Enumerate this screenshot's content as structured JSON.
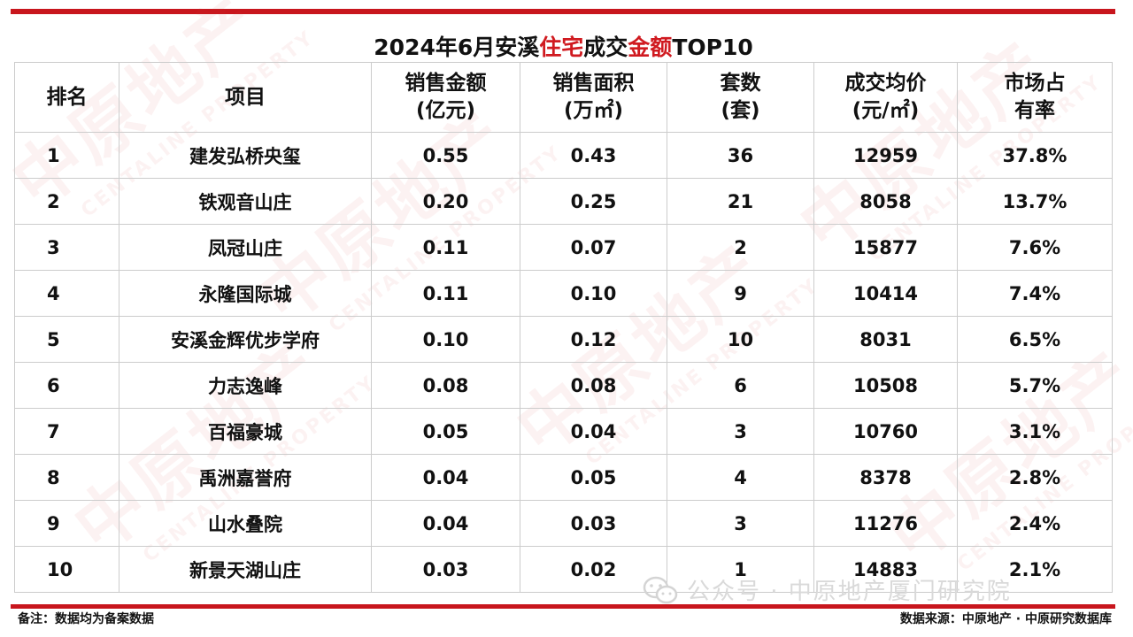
{
  "title": {
    "part1": "2024年6月安溪",
    "highlight1": "住宅",
    "part2": "成交",
    "highlight2": "金额",
    "part3": "TOP10"
  },
  "colors": {
    "accent": "#c8161d",
    "highlight": "#d01a20"
  },
  "watermark": {
    "main": "中原地产",
    "sub": "CENTALINE PROPERTY"
  },
  "headers": [
    {
      "line1": "排名",
      "line2": ""
    },
    {
      "line1": "项目",
      "line2": ""
    },
    {
      "line1": "销售金额",
      "line2": "(亿元)"
    },
    {
      "line1": "销售面积",
      "line2": "(万㎡)"
    },
    {
      "line1": "套数",
      "line2": "(套)"
    },
    {
      "line1": "成交均价",
      "line2": "(元/㎡)"
    },
    {
      "line1": "市场占",
      "line2": "有率"
    }
  ],
  "rows": [
    {
      "rank": "1",
      "project": "建发弘桥央玺",
      "amount": "0.55",
      "area": "0.43",
      "units": "36",
      "price": "12959",
      "share": "37.8%"
    },
    {
      "rank": "2",
      "project": "铁观音山庄",
      "amount": "0.20",
      "area": "0.25",
      "units": "21",
      "price": "8058",
      "share": "13.7%"
    },
    {
      "rank": "3",
      "project": "凤冠山庄",
      "amount": "0.11",
      "area": "0.07",
      "units": "2",
      "price": "15877",
      "share": "7.6%"
    },
    {
      "rank": "4",
      "project": "永隆国际城",
      "amount": "0.11",
      "area": "0.10",
      "units": "9",
      "price": "10414",
      "share": "7.4%"
    },
    {
      "rank": "5",
      "project": "安溪金辉优步学府",
      "amount": "0.10",
      "area": "0.12",
      "units": "10",
      "price": "8031",
      "share": "6.5%"
    },
    {
      "rank": "6",
      "project": "力志逸峰",
      "amount": "0.08",
      "area": "0.08",
      "units": "6",
      "price": "10508",
      "share": "5.7%"
    },
    {
      "rank": "7",
      "project": "百福豪城",
      "amount": "0.05",
      "area": "0.04",
      "units": "3",
      "price": "10760",
      "share": "3.1%"
    },
    {
      "rank": "8",
      "project": "禹洲嘉誉府",
      "amount": "0.04",
      "area": "0.05",
      "units": "4",
      "price": "8378",
      "share": "2.8%"
    },
    {
      "rank": "9",
      "project": "山水叠院",
      "amount": "0.04",
      "area": "0.03",
      "units": "3",
      "price": "11276",
      "share": "2.4%"
    },
    {
      "rank": "10",
      "project": "新景天湖山庄",
      "amount": "0.03",
      "area": "0.02",
      "units": "1",
      "price": "14883",
      "share": "2.1%"
    }
  ],
  "footer": {
    "note": "备注：数据均为备案数据",
    "source": "数据来源：中原地产 · 中原研究数据库"
  },
  "wechat_overlay": {
    "text": "公众号 · 中原地产厦门研究院",
    "icon": "wechat-icon"
  }
}
